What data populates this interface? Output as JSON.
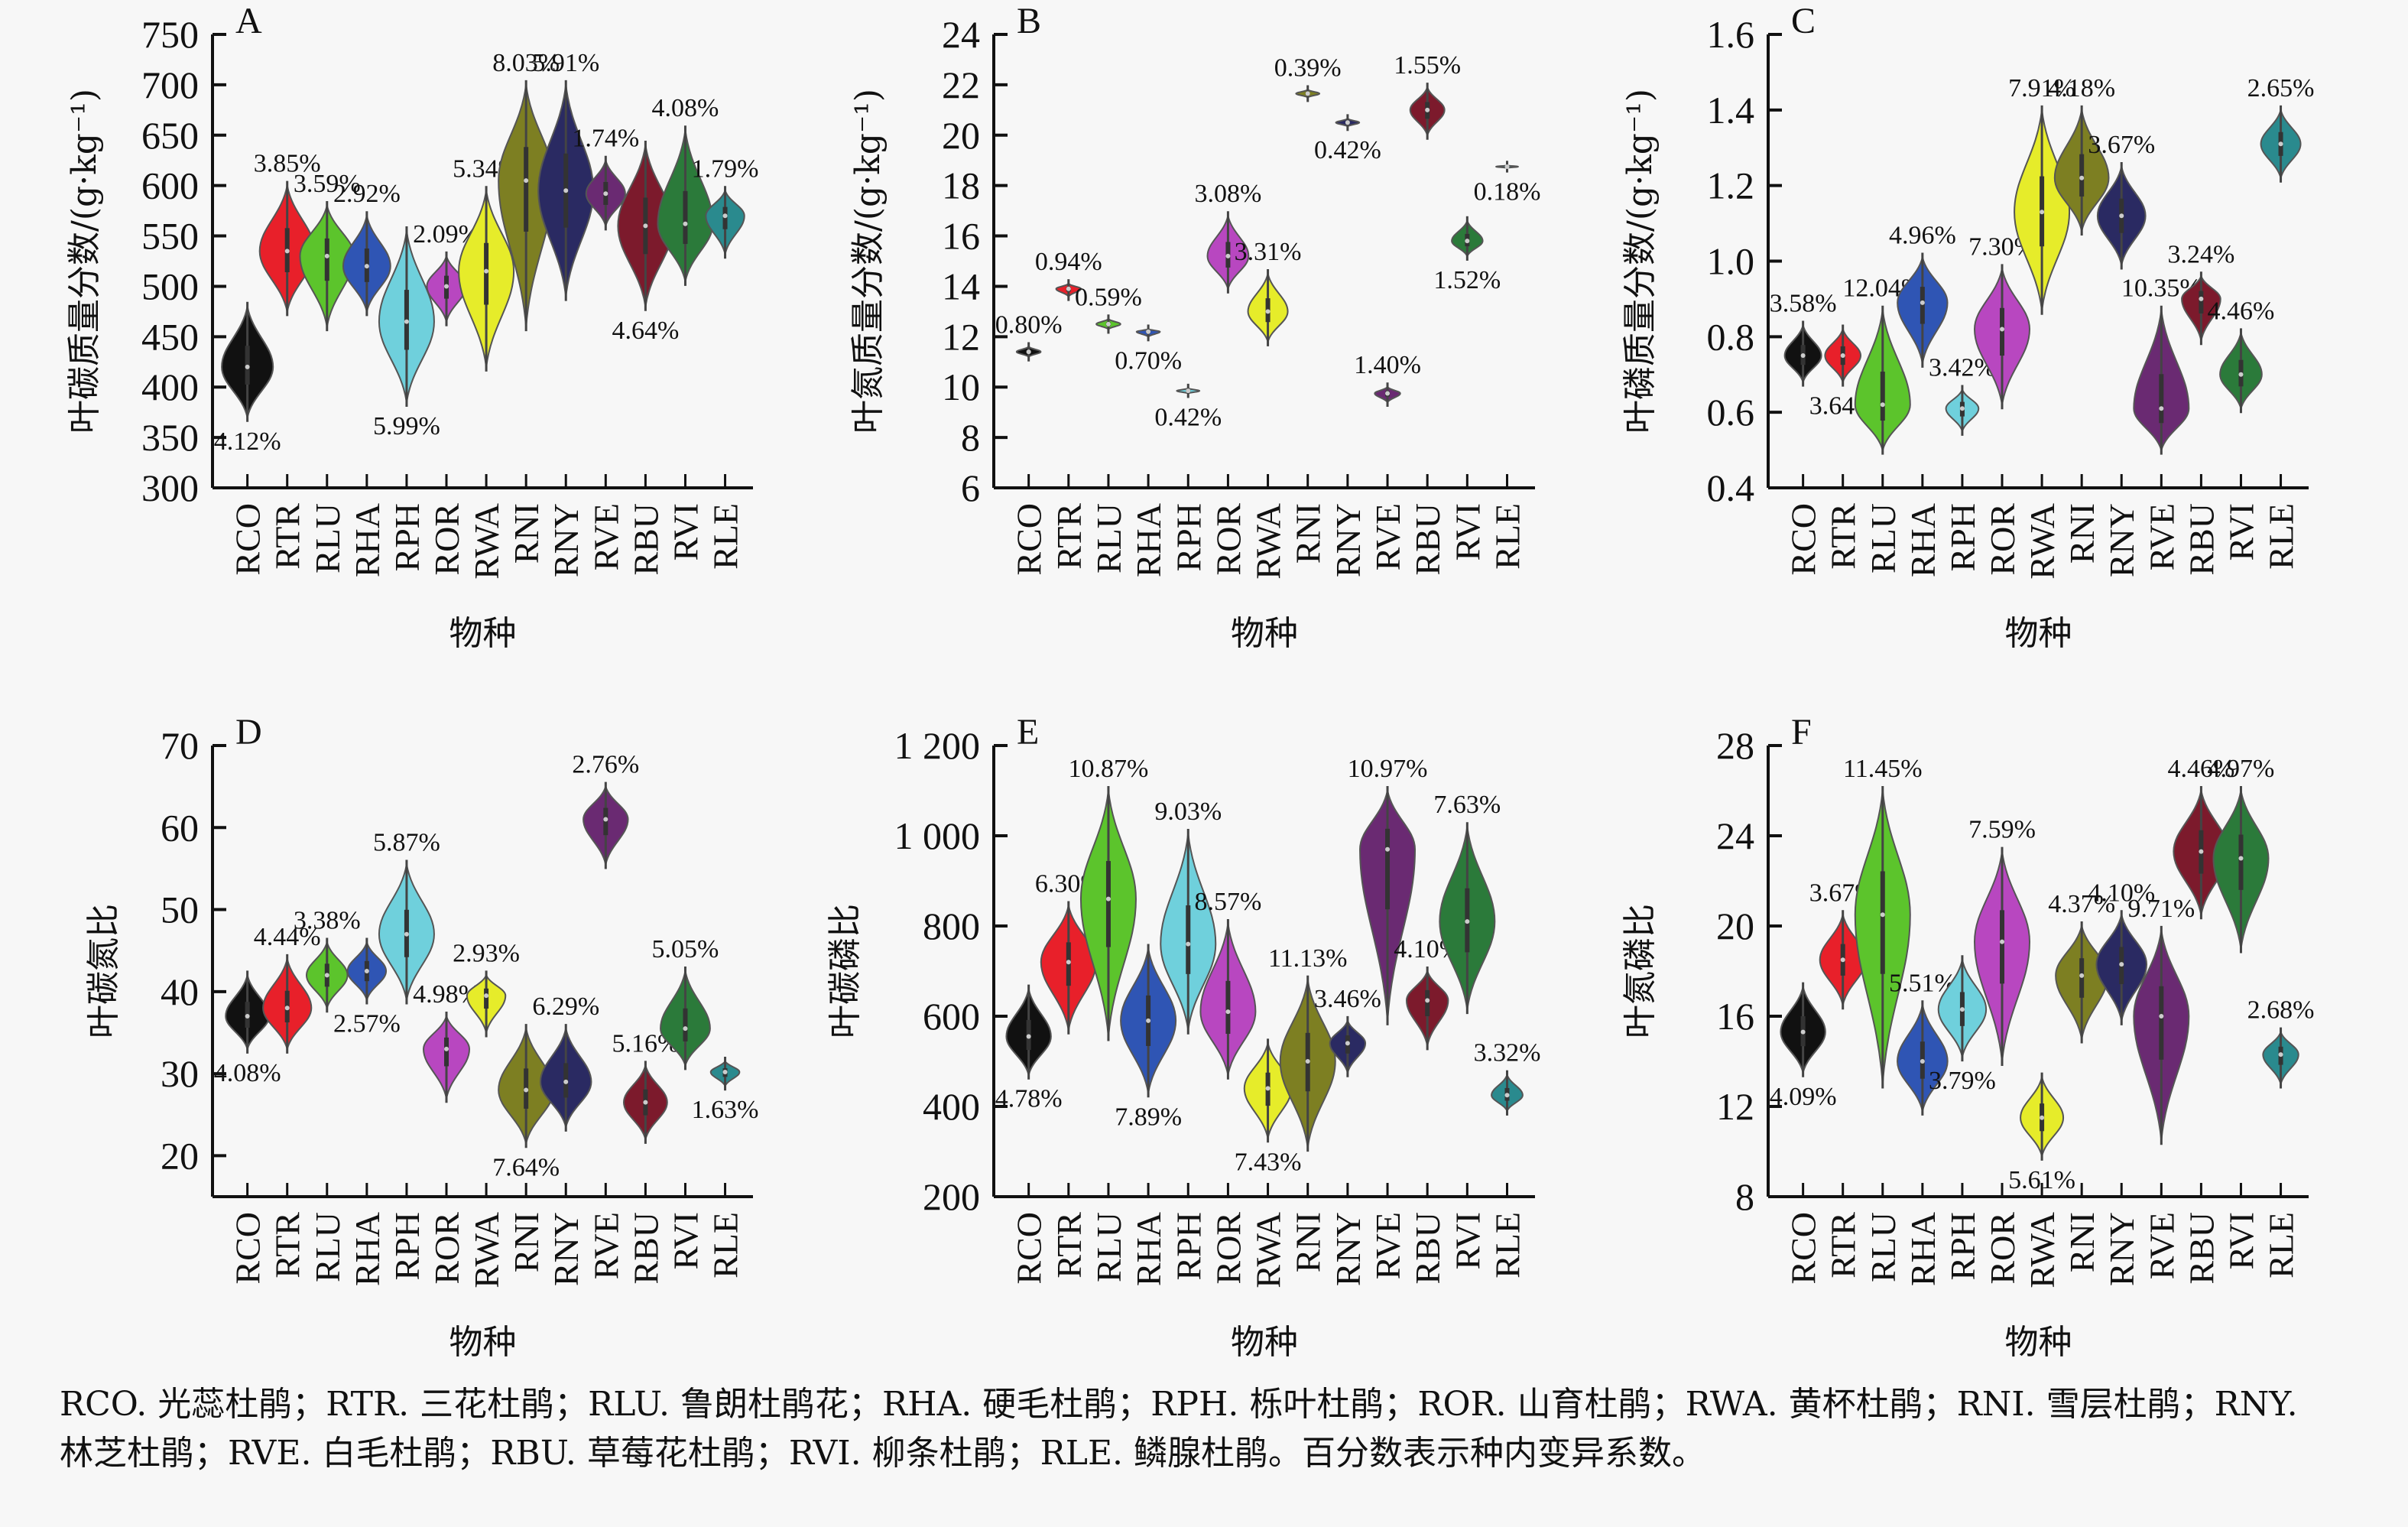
{
  "figure": {
    "categories": [
      "RCO",
      "RTR",
      "RLU",
      "RHA",
      "RPH",
      "ROR",
      "RWA",
      "RNI",
      "RNY",
      "RVE",
      "RBU",
      "RVI",
      "RLE"
    ],
    "colors": [
      "#111111",
      "#e8202a",
      "#5cc42c",
      "#2f55b4",
      "#6fd0dc",
      "#b847c0",
      "#e6ec2a",
      "#7d7f22",
      "#2a2a62",
      "#6a2a72",
      "#7c1a2c",
      "#2b7a3a",
      "#2a8a8e"
    ],
    "caption": "RCO. 光蕊杜鹃；RTR. 三花杜鹃；RLU. 鲁朗杜鹃花；RHA. 硬毛杜鹃；RPH. 栎叶杜鹃；ROR. 山育杜鹃；RWA. 黄杯杜鹃；RNI. 雪层杜鹃；RNY. 林芝杜鹃；RVE. 白毛杜鹃；RBU. 草莓花杜鹃；RVI. 柳条杜鹃；RLE. 鳞腺杜鹃。百分数表示种内变异系数。"
  },
  "chart_data": [
    {
      "panel": "A",
      "type": "violin",
      "ylabel": "叶碳质量分数/(g·kg⁻¹)",
      "xlabel": "物种",
      "ylim": [
        300,
        750
      ],
      "yticks": [
        "300",
        "350",
        "400",
        "450",
        "500",
        "550",
        "600",
        "650",
        "700",
        "750"
      ],
      "ytick_values": [
        300,
        350,
        400,
        450,
        500,
        550,
        600,
        650,
        700,
        750
      ],
      "series": [
        {
          "cat": "RCO",
          "median": 420,
          "min": 370,
          "max": 480,
          "cv": "4.12%",
          "cv_pos": "below"
        },
        {
          "cat": "RTR",
          "median": 535,
          "min": 475,
          "max": 600,
          "cv": "3.85%",
          "cv_pos": "above"
        },
        {
          "cat": "RLU",
          "median": 530,
          "min": 460,
          "max": 580,
          "cv": "3.59%",
          "cv_pos": "above"
        },
        {
          "cat": "RHA",
          "median": 520,
          "min": 475,
          "max": 570,
          "cv": "2.92%",
          "cv_pos": "above"
        },
        {
          "cat": "RPH",
          "median": 465,
          "min": 385,
          "max": 555,
          "cv": "5.99%",
          "cv_pos": "below"
        },
        {
          "cat": "ROR",
          "median": 500,
          "min": 465,
          "max": 530,
          "cv": "2.09%",
          "cv_pos": "above"
        },
        {
          "cat": "RWA",
          "median": 515,
          "min": 420,
          "max": 595,
          "cv": "5.34%",
          "cv_pos": "above"
        },
        {
          "cat": "RNI",
          "median": 605,
          "min": 460,
          "max": 700,
          "cv": "8.03%",
          "cv_pos": "above"
        },
        {
          "cat": "RNY",
          "median": 595,
          "min": 490,
          "max": 700,
          "cv": "5.91%",
          "cv_pos": "above"
        },
        {
          "cat": "RVE",
          "median": 592,
          "min": 560,
          "max": 625,
          "cv": "1.74%",
          "cv_pos": "above"
        },
        {
          "cat": "RBU",
          "median": 560,
          "min": 480,
          "max": 640,
          "cv": "4.64%",
          "cv_pos": "below"
        },
        {
          "cat": "RVI",
          "median": 562,
          "min": 505,
          "max": 655,
          "cv": "4.08%",
          "cv_pos": "above"
        },
        {
          "cat": "RLE",
          "median": 570,
          "min": 532,
          "max": 595,
          "cv": "1.79%",
          "cv_pos": "above"
        }
      ]
    },
    {
      "panel": "B",
      "type": "violin",
      "ylabel": "叶氮质量分数/(g·kg⁻¹)",
      "xlabel": "物种",
      "ylim": [
        6,
        24
      ],
      "yticks": [
        "6",
        "8",
        "10",
        "12",
        "14",
        "16",
        "18",
        "20",
        "22",
        "24"
      ],
      "ytick_values": [
        6,
        8,
        10,
        12,
        14,
        16,
        18,
        20,
        22,
        24
      ],
      "series": [
        {
          "cat": "RCO",
          "median": 11.4,
          "min": 11.2,
          "max": 11.6,
          "cv": "0.80%",
          "cv_pos": "above"
        },
        {
          "cat": "RTR",
          "median": 13.9,
          "min": 13.6,
          "max": 14.1,
          "cv": "0.94%",
          "cv_pos": "above"
        },
        {
          "cat": "RLU",
          "median": 12.5,
          "min": 12.3,
          "max": 12.7,
          "cv": "0.59%",
          "cv_pos": "above"
        },
        {
          "cat": "RHA",
          "median": 12.2,
          "min": 12.0,
          "max": 12.3,
          "cv": "0.70%",
          "cv_pos": "below"
        },
        {
          "cat": "RPH",
          "median": 9.85,
          "min": 9.75,
          "max": 9.95,
          "cv": "0.42%",
          "cv_pos": "below"
        },
        {
          "cat": "ROR",
          "median": 15.2,
          "min": 13.9,
          "max": 16.8,
          "cv": "3.08%",
          "cv_pos": "above"
        },
        {
          "cat": "RWA",
          "median": 13.0,
          "min": 11.8,
          "max": 14.5,
          "cv": "3.31%",
          "cv_pos": "above"
        },
        {
          "cat": "RNI",
          "median": 21.65,
          "min": 21.5,
          "max": 21.8,
          "cv": "0.39%",
          "cv_pos": "above"
        },
        {
          "cat": "RNY",
          "median": 20.5,
          "min": 20.35,
          "max": 20.65,
          "cv": "0.42%",
          "cv_pos": "below"
        },
        {
          "cat": "RVE",
          "median": 9.75,
          "min": 9.4,
          "max": 10.0,
          "cv": "1.40%",
          "cv_pos": "above"
        },
        {
          "cat": "RBU",
          "median": 21.0,
          "min": 20.0,
          "max": 21.9,
          "cv": "1.55%",
          "cv_pos": "above"
        },
        {
          "cat": "RVI",
          "median": 15.8,
          "min": 15.2,
          "max": 16.6,
          "cv": "1.52%",
          "cv_pos": "below"
        },
        {
          "cat": "RLE",
          "median": 18.75,
          "min": 18.7,
          "max": 18.8,
          "cv": "0.18%",
          "cv_pos": "below"
        }
      ]
    },
    {
      "panel": "C",
      "type": "violin",
      "ylabel": "叶磷质量分数/(g·kg⁻¹)",
      "xlabel": "物种",
      "ylim": [
        0.4,
        1.6
      ],
      "yticks": [
        "0.4",
        "0.6",
        "0.8",
        "1.0",
        "1.2",
        "1.4",
        "1.6"
      ],
      "ytick_values": [
        0.4,
        0.6,
        0.8,
        1.0,
        1.2,
        1.4,
        1.6
      ],
      "series": [
        {
          "cat": "RCO",
          "median": 0.75,
          "min": 0.68,
          "max": 0.83,
          "cv": "3.58%",
          "cv_pos": "above"
        },
        {
          "cat": "RTR",
          "median": 0.75,
          "min": 0.68,
          "max": 0.82,
          "cv": "3.64%",
          "cv_pos": "below"
        },
        {
          "cat": "RLU",
          "median": 0.62,
          "min": 0.5,
          "max": 0.87,
          "cv": "12.04%",
          "cv_pos": "above"
        },
        {
          "cat": "RHA",
          "median": 0.89,
          "min": 0.73,
          "max": 1.01,
          "cv": "4.96%",
          "cv_pos": "above"
        },
        {
          "cat": "RPH",
          "median": 0.61,
          "min": 0.55,
          "max": 0.66,
          "cv": "3.42%",
          "cv_pos": "above"
        },
        {
          "cat": "ROR",
          "median": 0.82,
          "min": 0.62,
          "max": 0.98,
          "cv": "7.30%",
          "cv_pos": "above"
        },
        {
          "cat": "RWA",
          "median": 1.13,
          "min": 0.87,
          "max": 1.4,
          "cv": "7.91%",
          "cv_pos": "above"
        },
        {
          "cat": "RNI",
          "median": 1.22,
          "min": 1.08,
          "max": 1.4,
          "cv": "4.18%",
          "cv_pos": "above"
        },
        {
          "cat": "RNY",
          "median": 1.12,
          "min": 0.99,
          "max": 1.25,
          "cv": "3.67%",
          "cv_pos": "above"
        },
        {
          "cat": "RVE",
          "median": 0.61,
          "min": 0.5,
          "max": 0.87,
          "cv": "10.35%",
          "cv_pos": "above"
        },
        {
          "cat": "RBU",
          "median": 0.9,
          "min": 0.79,
          "max": 0.96,
          "cv": "3.24%",
          "cv_pos": "above"
        },
        {
          "cat": "RVI",
          "median": 0.7,
          "min": 0.61,
          "max": 0.81,
          "cv": "4.46%",
          "cv_pos": "above"
        },
        {
          "cat": "RLE",
          "median": 1.31,
          "min": 1.22,
          "max": 1.4,
          "cv": "2.65%",
          "cv_pos": "above"
        }
      ]
    },
    {
      "panel": "D",
      "type": "violin",
      "ylabel": "叶碳氮比",
      "xlabel": "物种",
      "ylim": [
        15,
        70
      ],
      "yticks": [
        "20",
        "30",
        "40",
        "50",
        "60",
        "70"
      ],
      "ytick_values": [
        20,
        30,
        40,
        50,
        60,
        70
      ],
      "series": [
        {
          "cat": "RCO",
          "median": 37,
          "min": 33,
          "max": 42,
          "cv": "4.08%",
          "cv_pos": "below"
        },
        {
          "cat": "RTR",
          "median": 38,
          "min": 33,
          "max": 44,
          "cv": "4.44%",
          "cv_pos": "above"
        },
        {
          "cat": "RLU",
          "median": 42,
          "min": 38,
          "max": 46,
          "cv": "3.38%",
          "cv_pos": "above"
        },
        {
          "cat": "RHA",
          "median": 42.5,
          "min": 39,
          "max": 46,
          "cv": "2.57%",
          "cv_pos": "below"
        },
        {
          "cat": "RPH",
          "median": 47,
          "min": 39,
          "max": 55.5,
          "cv": "5.87%",
          "cv_pos": "above"
        },
        {
          "cat": "ROR",
          "median": 33,
          "min": 27,
          "max": 37,
          "cv": "4.98%",
          "cv_pos": "above"
        },
        {
          "cat": "RWA",
          "median": 39.5,
          "min": 35,
          "max": 42,
          "cv": "2.93%",
          "cv_pos": "above"
        },
        {
          "cat": "RNI",
          "median": 28,
          "min": 21.5,
          "max": 35.5,
          "cv": "7.64%",
          "cv_pos": "below"
        },
        {
          "cat": "RNY",
          "median": 29,
          "min": 23.5,
          "max": 35.5,
          "cv": "6.29%",
          "cv_pos": "above"
        },
        {
          "cat": "RVE",
          "median": 61,
          "min": 55.5,
          "max": 65,
          "cv": "2.76%",
          "cv_pos": "above"
        },
        {
          "cat": "RBU",
          "median": 26.5,
          "min": 22,
          "max": 31,
          "cv": "5.16%",
          "cv_pos": "above"
        },
        {
          "cat": "RVI",
          "median": 35.5,
          "min": 31,
          "max": 42.5,
          "cv": "5.05%",
          "cv_pos": "above"
        },
        {
          "cat": "RLE",
          "median": 30.2,
          "min": 28.5,
          "max": 31.5,
          "cv": "1.63%",
          "cv_pos": "below"
        }
      ]
    },
    {
      "panel": "E",
      "type": "violin",
      "ylabel": "叶碳磷比",
      "xlabel": "物种",
      "ylim": [
        200,
        1200
      ],
      "yticks": [
        "200",
        "400",
        "600",
        "800",
        "1 000",
        "1 200"
      ],
      "ytick_values": [
        200,
        400,
        600,
        800,
        1000,
        1200
      ],
      "series": [
        {
          "cat": "RCO",
          "median": 555,
          "min": 470,
          "max": 660,
          "cv": "4.78%",
          "cv_pos": "below"
        },
        {
          "cat": "RTR",
          "median": 720,
          "min": 570,
          "max": 845,
          "cv": "6.30%",
          "cv_pos": "above"
        },
        {
          "cat": "RLU",
          "median": 860,
          "min": 555,
          "max": 1100,
          "cv": "10.87%",
          "cv_pos": "above"
        },
        {
          "cat": "RHA",
          "median": 590,
          "min": 430,
          "max": 750,
          "cv": "7.89%",
          "cv_pos": "below"
        },
        {
          "cat": "RPH",
          "median": 760,
          "min": 570,
          "max": 1005,
          "cv": "9.03%",
          "cv_pos": "above"
        },
        {
          "cat": "ROR",
          "median": 610,
          "min": 470,
          "max": 805,
          "cv": "8.57%",
          "cv_pos": "above"
        },
        {
          "cat": "RWA",
          "median": 440,
          "min": 330,
          "max": 540,
          "cv": "7.43%",
          "cv_pos": "below"
        },
        {
          "cat": "RNI",
          "median": 500,
          "min": 310,
          "max": 680,
          "cv": "11.13%",
          "cv_pos": "above"
        },
        {
          "cat": "RNY",
          "median": 540,
          "min": 475,
          "max": 590,
          "cv": "3.46%",
          "cv_pos": "above"
        },
        {
          "cat": "RVE",
          "median": 970,
          "min": 590,
          "max": 1100,
          "cv": "10.97%",
          "cv_pos": "above"
        },
        {
          "cat": "RBU",
          "median": 635,
          "min": 535,
          "max": 700,
          "cv": "4.10%",
          "cv_pos": "above"
        },
        {
          "cat": "RVI",
          "median": 810,
          "min": 615,
          "max": 1020,
          "cv": "7.63%",
          "cv_pos": "above"
        },
        {
          "cat": "RLE",
          "median": 425,
          "min": 390,
          "max": 470,
          "cv": "3.32%",
          "cv_pos": "above"
        }
      ]
    },
    {
      "panel": "F",
      "type": "violin",
      "ylabel": "叶氮磷比",
      "xlabel": "物种",
      "ylim": [
        8,
        28
      ],
      "yticks": [
        "8",
        "12",
        "16",
        "20",
        "24",
        "28"
      ],
      "ytick_values": [
        8,
        12,
        16,
        20,
        24,
        28
      ],
      "series": [
        {
          "cat": "RCO",
          "median": 15.3,
          "min": 13.5,
          "max": 17.3,
          "cv": "4.09%",
          "cv_pos": "below"
        },
        {
          "cat": "RTR",
          "median": 18.5,
          "min": 16.5,
          "max": 20.5,
          "cv": "3.67%",
          "cv_pos": "above"
        },
        {
          "cat": "RLU",
          "median": 20.5,
          "min": 13.0,
          "max": 26.0,
          "cv": "11.45%",
          "cv_pos": "above"
        },
        {
          "cat": "RHA",
          "median": 14.0,
          "min": 11.8,
          "max": 16.5,
          "cv": "5.51%",
          "cv_pos": "above"
        },
        {
          "cat": "RPH",
          "median": 16.3,
          "min": 14.2,
          "max": 18.5,
          "cv": "3.79%",
          "cv_pos": "below"
        },
        {
          "cat": "ROR",
          "median": 19.3,
          "min": 14.0,
          "max": 23.3,
          "cv": "7.59%",
          "cv_pos": "above"
        },
        {
          "cat": "RWA",
          "median": 11.5,
          "min": 9.8,
          "max": 13.3,
          "cv": "5.61%",
          "cv_pos": "below"
        },
        {
          "cat": "RNI",
          "median": 17.8,
          "min": 15.0,
          "max": 20.0,
          "cv": "4.37%",
          "cv_pos": "above"
        },
        {
          "cat": "RNY",
          "median": 18.3,
          "min": 15.8,
          "max": 20.5,
          "cv": "4.10%",
          "cv_pos": "above"
        },
        {
          "cat": "RVE",
          "median": 16.0,
          "min": 10.5,
          "max": 19.8,
          "cv": "9.71%",
          "cv_pos": "above"
        },
        {
          "cat": "RBU",
          "median": 23.3,
          "min": 20.5,
          "max": 26.0,
          "cv": "4.46%",
          "cv_pos": "above"
        },
        {
          "cat": "RVI",
          "median": 23.0,
          "min": 19.0,
          "max": 26.0,
          "cv": "4.97%",
          "cv_pos": "above"
        },
        {
          "cat": "RLE",
          "median": 14.3,
          "min": 13.0,
          "max": 15.3,
          "cv": "2.68%",
          "cv_pos": "above"
        }
      ]
    }
  ]
}
